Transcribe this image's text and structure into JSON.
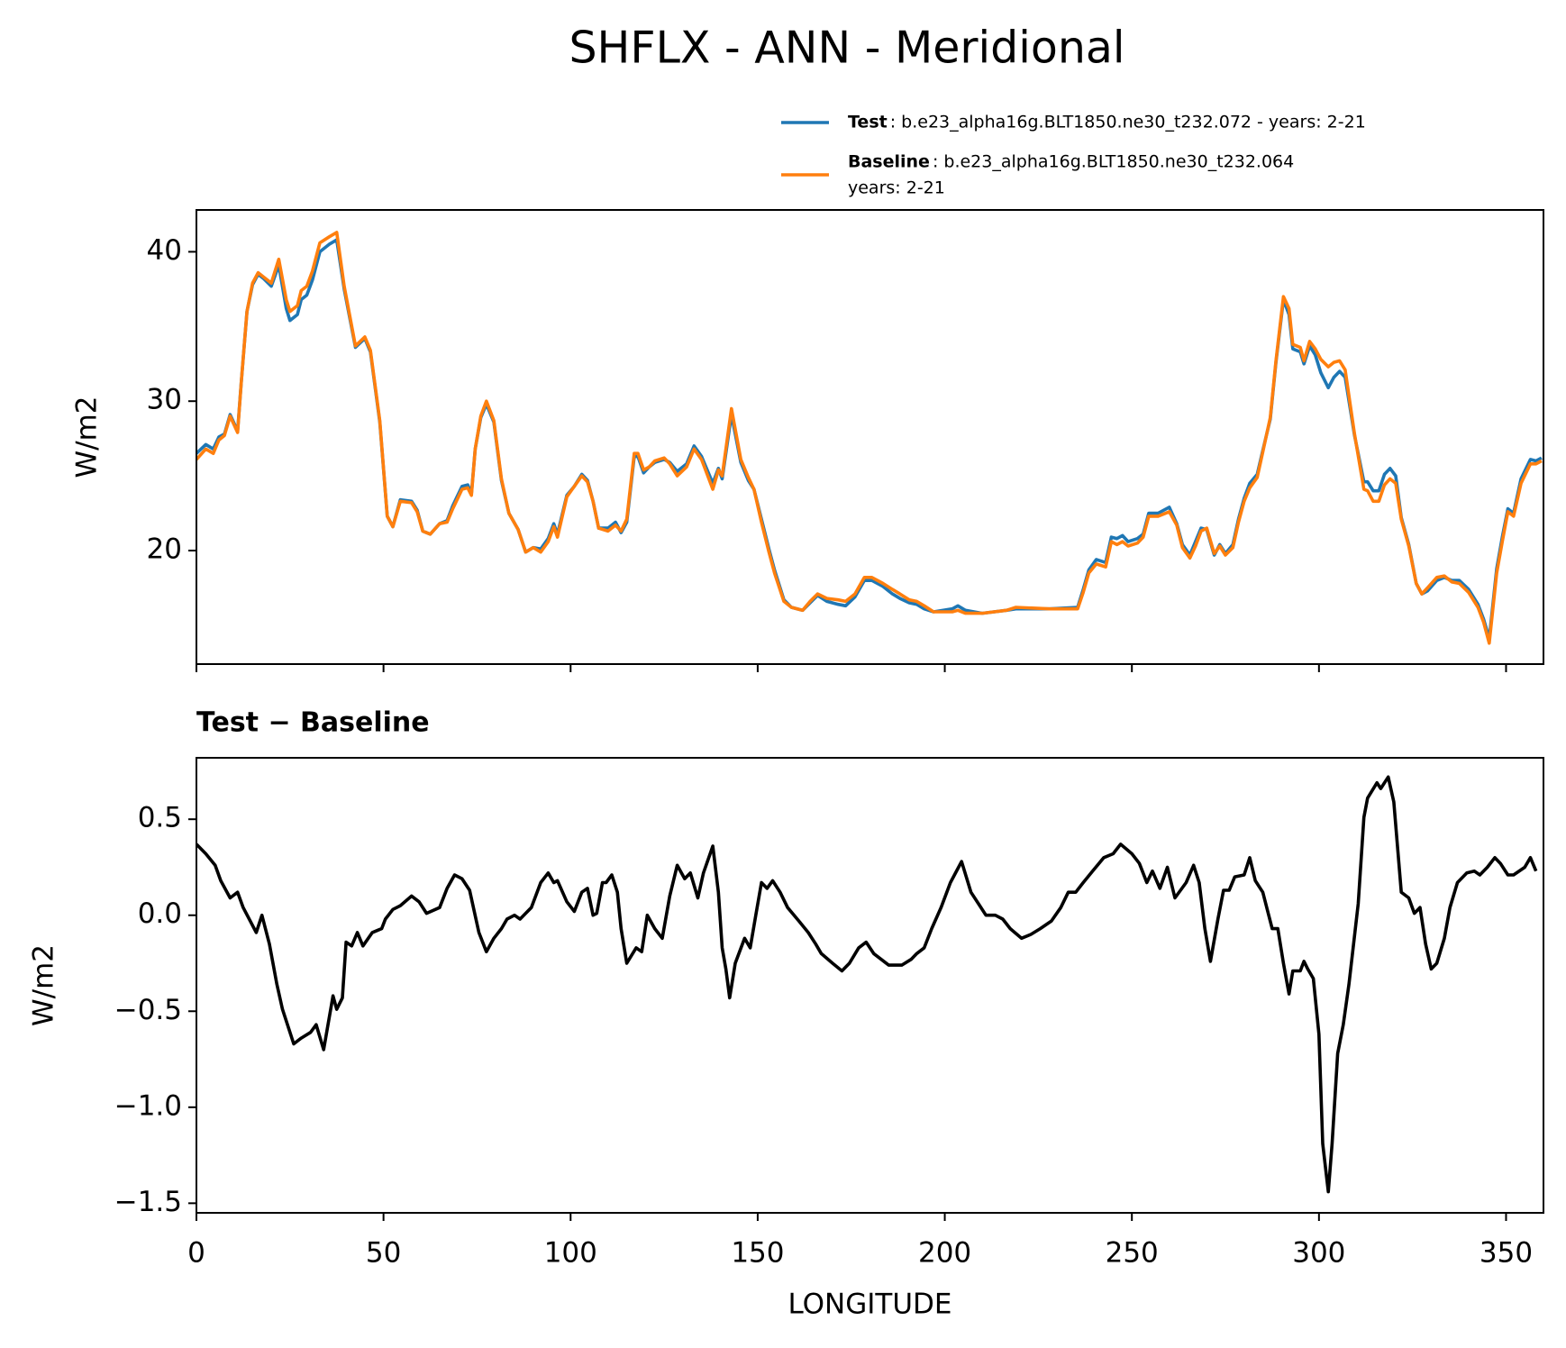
{
  "title": "SHFLX - ANN - Meridional",
  "chart_data": [
    {
      "type": "line",
      "ylabel": "W/m2",
      "xlim": [
        0,
        360
      ],
      "xticks": [
        0,
        50,
        100,
        150,
        200,
        250,
        300,
        350
      ],
      "ylim": [
        12.4,
        42.8
      ],
      "yticks": [
        20,
        30,
        40
      ],
      "x": [
        0,
        2.5,
        4.5,
        6,
        7.5,
        9,
        11,
        12,
        13.5,
        15,
        16.5,
        18,
        20,
        22,
        24,
        25,
        27,
        28,
        29.5,
        31,
        33,
        35.5,
        37.5,
        39.5,
        42.5,
        45,
        46.5,
        49,
        51,
        52.5,
        54.5,
        57.5,
        59,
        60.5,
        62.5,
        65,
        67,
        68.5,
        71,
        72.5,
        73.5,
        74.5,
        76,
        77.5,
        79.5,
        81.5,
        83.5,
        86,
        88,
        90,
        92,
        94,
        95.5,
        96.5,
        99,
        101,
        103,
        104.5,
        106,
        107.5,
        110,
        112,
        113.5,
        115,
        117,
        118,
        119.5,
        121,
        122.5,
        125,
        126.5,
        128.5,
        131,
        133,
        135,
        138,
        139.5,
        140.5,
        143,
        145.5,
        147.5,
        149,
        151,
        153,
        154.5,
        157,
        159,
        162,
        164,
        166,
        168.5,
        171.5,
        173.5,
        176,
        178.5,
        180.5,
        183.5,
        186,
        188,
        190.5,
        192.5,
        194.5,
        197,
        202,
        203.5,
        205.5,
        210,
        216.5,
        219,
        228,
        235.5,
        237,
        238.5,
        240.5,
        243,
        244.5,
        246,
        247.5,
        249,
        251.5,
        253,
        254.5,
        257,
        260,
        262,
        263.5,
        265.5,
        267,
        268.5,
        270,
        272,
        273.5,
        275,
        277,
        278.5,
        280,
        281.5,
        283.5,
        285,
        287,
        288.5,
        290.5,
        292,
        293,
        295,
        296,
        297.5,
        299,
        300.5,
        302.5,
        304,
        305.5,
        307,
        309.5,
        312,
        313,
        314.5,
        316,
        317.5,
        319,
        320.5,
        322,
        324,
        326,
        327.5,
        329,
        331.5,
        333.5,
        335.5,
        337.5,
        340,
        342.5,
        344,
        345.5,
        347.5,
        349,
        350.5,
        352,
        354,
        356.5,
        358,
        359.5
      ],
      "series": [
        {
          "name": "Test",
          "description": [
            ": b.e23_alpha16g.BLT1850.ne30_t232.072 - years: 2-21"
          ],
          "color": "#1f77b4",
          "values": [
            26.5,
            27.1,
            26.8,
            27.6,
            27.8,
            29.1,
            28.0,
            31.3,
            36.0,
            37.8,
            38.5,
            38.2,
            37.7,
            39.1,
            36.2,
            35.4,
            35.8,
            36.8,
            37.1,
            38.1,
            40.0,
            40.5,
            40.8,
            37.5,
            33.6,
            34.2,
            33.3,
            28.6,
            22.3,
            21.6,
            23.4,
            23.3,
            22.7,
            21.3,
            21.1,
            21.8,
            22.0,
            23.0,
            24.3,
            24.4,
            23.8,
            26.8,
            28.9,
            29.8,
            28.6,
            24.7,
            22.5,
            21.4,
            19.9,
            20.2,
            20.1,
            20.8,
            21.8,
            21.1,
            23.7,
            24.3,
            25.1,
            24.7,
            23.3,
            21.5,
            21.5,
            21.9,
            21.2,
            21.9,
            26.3,
            26.3,
            25.2,
            25.6,
            25.9,
            26.1,
            25.9,
            25.3,
            25.8,
            27.0,
            26.3,
            24.5,
            25.5,
            24.8,
            29.1,
            25.9,
            24.7,
            24.1,
            22.1,
            20.1,
            18.7,
            16.7,
            16.2,
            16.0,
            16.5,
            17.0,
            16.6,
            16.4,
            16.3,
            16.9,
            18.0,
            18.0,
            17.6,
            17.1,
            16.8,
            16.5,
            16.4,
            16.1,
            15.9,
            16.1,
            16.3,
            16.0,
            15.8,
            16.0,
            16.1,
            16.1,
            16.2,
            17.4,
            18.7,
            19.4,
            19.2,
            20.9,
            20.8,
            21.0,
            20.6,
            20.8,
            21.1,
            22.5,
            22.5,
            22.9,
            21.8,
            20.4,
            19.7,
            20.6,
            21.5,
            21.4,
            19.7,
            20.4,
            19.8,
            20.4,
            22.1,
            23.5,
            24.5,
            25.1,
            26.7,
            28.8,
            32.6,
            36.8,
            35.8,
            33.5,
            33.3,
            32.5,
            33.7,
            33.1,
            31.9,
            30.9,
            31.6,
            32.0,
            31.6,
            27.7,
            24.6,
            24.6,
            24.0,
            24.0,
            25.1,
            25.5,
            25.0,
            22.2,
            20.4,
            17.8,
            17.1,
            17.3,
            18.0,
            18.2,
            18.0,
            18.0,
            17.4,
            16.4,
            15.4,
            14.1,
            18.8,
            20.9,
            22.8,
            22.5,
            24.8,
            26.1,
            26.0,
            26.2
          ]
        },
        {
          "name": "Baseline",
          "description": [
            ": b.e23_alpha16g.BLT1850.ne30_t232.064",
            "years: 2-21"
          ],
          "color": "#ff7f0e",
          "values": [
            26.1,
            26.8,
            26.5,
            27.4,
            27.7,
            29.0,
            27.9,
            31.3,
            36.0,
            37.9,
            38.6,
            38.3,
            37.9,
            39.5,
            36.8,
            36.0,
            36.4,
            37.4,
            37.7,
            38.7,
            40.6,
            41.0,
            41.3,
            37.7,
            33.7,
            34.3,
            33.4,
            28.7,
            22.3,
            21.6,
            23.3,
            23.2,
            22.6,
            21.3,
            21.1,
            21.8,
            21.9,
            22.8,
            24.1,
            24.2,
            23.7,
            26.8,
            29.0,
            30.0,
            28.7,
            24.8,
            22.5,
            21.4,
            19.9,
            20.2,
            19.9,
            20.6,
            21.6,
            20.9,
            23.6,
            24.3,
            25.0,
            24.6,
            23.3,
            21.5,
            21.3,
            21.7,
            21.3,
            22.1,
            26.5,
            26.5,
            25.4,
            25.6,
            26.0,
            26.2,
            25.8,
            25.0,
            25.6,
            26.8,
            26.1,
            24.1,
            25.4,
            25.0,
            29.5,
            26.1,
            24.9,
            24.1,
            21.9,
            19.9,
            18.5,
            16.6,
            16.2,
            16.0,
            16.6,
            17.1,
            16.8,
            16.7,
            16.6,
            17.1,
            18.2,
            18.2,
            17.8,
            17.4,
            17.1,
            16.7,
            16.6,
            16.3,
            15.9,
            15.9,
            16.0,
            15.8,
            15.8,
            16.0,
            16.2,
            16.1,
            16.1,
            17.2,
            18.5,
            19.1,
            18.9,
            20.6,
            20.4,
            20.6,
            20.3,
            20.5,
            20.9,
            22.3,
            22.3,
            22.6,
            21.7,
            20.2,
            19.5,
            20.3,
            21.3,
            21.5,
            19.8,
            20.3,
            19.7,
            20.2,
            21.9,
            23.3,
            24.2,
            24.9,
            26.6,
            28.9,
            32.7,
            37.0,
            36.2,
            33.8,
            33.6,
            32.7,
            34.0,
            33.5,
            32.8,
            32.3,
            32.6,
            32.7,
            32.1,
            27.8,
            24.1,
            24.0,
            23.3,
            23.3,
            24.4,
            24.8,
            24.5,
            22.1,
            20.3,
            17.8,
            17.1,
            17.5,
            18.2,
            18.3,
            17.9,
            17.8,
            17.2,
            16.2,
            15.2,
            13.8,
            18.5,
            20.6,
            22.6,
            22.3,
            24.5,
            25.8,
            25.8,
            26.0
          ]
        }
      ]
    },
    {
      "type": "line",
      "title": "Test − Baseline",
      "xlabel": "LONGITUDE",
      "ylabel": "W/m2",
      "xlim": [
        0,
        360
      ],
      "xticks": [
        0,
        50,
        100,
        150,
        200,
        250,
        300,
        350
      ],
      "ylim": [
        -1.55,
        0.82
      ],
      "yticks": [
        0.5,
        {
          "value": 0,
          "label": "0.0"
        },
        {
          "value": -0.5,
          "label": "−0.5"
        },
        {
          "value": -1,
          "label": "−1.0"
        },
        {
          "value": -1.5,
          "label": "−1.5"
        }
      ],
      "x": [
        0,
        2.5,
        5,
        6.5,
        9,
        11,
        12.5,
        16,
        17.5,
        19.5,
        21.5,
        23,
        26,
        28,
        30.5,
        32,
        34,
        36.5,
        37.5,
        39,
        40,
        41.5,
        43,
        44.5,
        47,
        49.5,
        50.5,
        52.5,
        54.5,
        57.5,
        59.5,
        61.5,
        65,
        67,
        69,
        71,
        73,
        75.5,
        77.5,
        79.5,
        81.5,
        83,
        85,
        86.5,
        88,
        89.5,
        92,
        94,
        95.5,
        96.5,
        99,
        101,
        103,
        104.5,
        106,
        107,
        108.5,
        109.5,
        111,
        112.5,
        113.5,
        115,
        117.5,
        119,
        120.5,
        122.5,
        124.5,
        126.5,
        128.5,
        130.5,
        132,
        134,
        135.5,
        138,
        139.5,
        140.5,
        141.5,
        142.5,
        144,
        146.5,
        148,
        149.5,
        151,
        152.5,
        154,
        156,
        158,
        161,
        163.5,
        165.5,
        167,
        170,
        172.5,
        174.5,
        177,
        179,
        181,
        183,
        185,
        188.5,
        191,
        192.5,
        194.5,
        196.5,
        199,
        201.5,
        204.5,
        207,
        209,
        211,
        213.5,
        215.5,
        217.5,
        220.5,
        223,
        225.5,
        228.5,
        231,
        233,
        235,
        237,
        239.5,
        242.5,
        245,
        247,
        250,
        252,
        254,
        255.5,
        257.5,
        259.5,
        261.5,
        264.5,
        266.5,
        268,
        269.5,
        271,
        273,
        274.5,
        276,
        277.5,
        280,
        281.5,
        283,
        285,
        287.5,
        289,
        290.5,
        292,
        293,
        295,
        296,
        297,
        298.5,
        300,
        301,
        302.5,
        303.5,
        305,
        306.5,
        308,
        310.5,
        312,
        313,
        315.5,
        316.5,
        318.5,
        320,
        322,
        324,
        325.5,
        327,
        328.5,
        330,
        331.5,
        333.5,
        335,
        337,
        339.5,
        341.5,
        343,
        345,
        347,
        348.5,
        350.5,
        352,
        355,
        356.5,
        358
      ],
      "series": [
        {
          "color": "#000000",
          "values": [
            0.37,
            0.32,
            0.26,
            0.18,
            0.09,
            0.12,
            0.04,
            -0.09,
            0.0,
            -0.15,
            -0.36,
            -0.49,
            -0.67,
            -0.64,
            -0.61,
            -0.57,
            -0.7,
            -0.42,
            -0.49,
            -0.43,
            -0.14,
            -0.16,
            -0.09,
            -0.16,
            -0.09,
            -0.07,
            -0.02,
            0.03,
            0.05,
            0.1,
            0.07,
            0.01,
            0.04,
            0.14,
            0.21,
            0.19,
            0.13,
            -0.09,
            -0.19,
            -0.12,
            -0.07,
            -0.02,
            0.0,
            -0.02,
            0.01,
            0.04,
            0.17,
            0.22,
            0.17,
            0.18,
            0.07,
            0.02,
            0.12,
            0.14,
            0.0,
            0.01,
            0.17,
            0.17,
            0.21,
            0.12,
            -0.07,
            -0.25,
            -0.17,
            -0.19,
            0.0,
            -0.07,
            -0.12,
            0.1,
            0.26,
            0.19,
            0.22,
            0.09,
            0.22,
            0.36,
            0.12,
            -0.17,
            -0.28,
            -0.43,
            -0.25,
            -0.12,
            -0.17,
            0.0,
            0.17,
            0.14,
            0.18,
            0.12,
            0.04,
            -0.03,
            -0.09,
            -0.15,
            -0.2,
            -0.25,
            -0.29,
            -0.25,
            -0.17,
            -0.14,
            -0.2,
            -0.23,
            -0.26,
            -0.26,
            -0.23,
            -0.2,
            -0.17,
            -0.07,
            0.04,
            0.17,
            0.28,
            0.12,
            0.06,
            0.0,
            0.0,
            -0.02,
            -0.07,
            -0.12,
            -0.1,
            -0.07,
            -0.03,
            0.04,
            0.12,
            0.12,
            0.17,
            0.23,
            0.3,
            0.32,
            0.37,
            0.32,
            0.27,
            0.17,
            0.23,
            0.14,
            0.25,
            0.09,
            0.17,
            0.26,
            0.17,
            -0.07,
            -0.24,
            -0.02,
            0.13,
            0.13,
            0.2,
            0.21,
            0.3,
            0.18,
            0.12,
            -0.07,
            -0.07,
            -0.25,
            -0.41,
            -0.29,
            -0.29,
            -0.24,
            -0.28,
            -0.33,
            -0.62,
            -1.19,
            -1.44,
            -1.19,
            -0.72,
            -0.57,
            -0.36,
            0.06,
            0.51,
            0.61,
            0.69,
            0.66,
            0.72,
            0.59,
            0.12,
            0.09,
            0.01,
            0.04,
            -0.15,
            -0.28,
            -0.25,
            -0.12,
            0.04,
            0.17,
            0.22,
            0.23,
            0.21,
            0.25,
            0.3,
            0.27,
            0.21,
            0.21,
            0.25,
            0.3,
            0.23
          ]
        }
      ]
    }
  ]
}
